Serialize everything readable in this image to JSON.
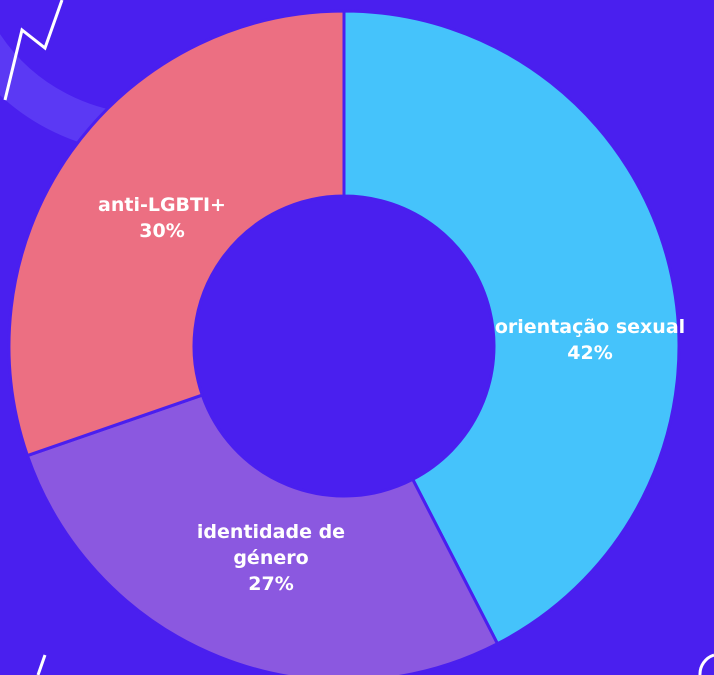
{
  "chart_data": {
    "type": "donut",
    "categories": [
      "orientação sexual",
      "identidade de género",
      "anti-LGBTI+"
    ],
    "values": [
      42,
      27,
      30
    ],
    "value_labels": [
      "42%",
      "27%",
      "30%"
    ],
    "colors": [
      "#45c3fb",
      "#8b58e0",
      "#ec6f82"
    ]
  }
}
